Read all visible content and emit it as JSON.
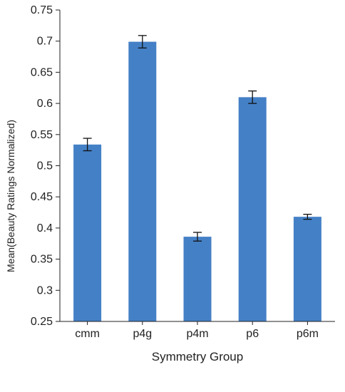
{
  "chart_data": {
    "type": "bar",
    "title": "",
    "xlabel": "Symmetry Group",
    "ylabel": "Mean(Beauty Ratings Normalized)",
    "ylim": [
      0.25,
      0.75
    ],
    "y_ticks": [
      "0.25",
      "0.3",
      "0.35",
      "0.4",
      "0.45",
      "0.5",
      "0.55",
      "0.6",
      "0.65",
      "0.7",
      "0.75"
    ],
    "grid": false,
    "legend": "none",
    "categories": [
      "cmm",
      "p4g",
      "p4m",
      "p6",
      "p6m"
    ],
    "values": [
      0.534,
      0.699,
      0.386,
      0.61,
      0.418
    ],
    "error": [
      0.01,
      0.01,
      0.007,
      0.01,
      0.004
    ],
    "colors": {
      "bar": "#4480c6",
      "axis": "#222222",
      "error_bar": "#111111"
    }
  }
}
